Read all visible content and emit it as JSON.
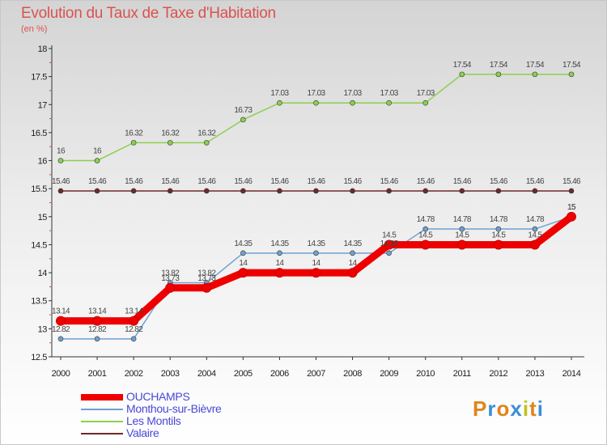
{
  "title": "Evolution du Taux de Taxe d'Habitation",
  "unit": "(en %)",
  "logo": {
    "text": "Proxiti",
    "letter_colors": [
      "#e0841c",
      "#3a8fd8",
      "#e0841c",
      "#3a8fd8",
      "#c0c020",
      "#e0841c",
      "#3a8fd8"
    ]
  },
  "chart_data": {
    "type": "line",
    "title": "Evolution du Taux de Taxe d'Habitation",
    "ylabel": "(en %)",
    "xlabel": "",
    "ylim": [
      12.5,
      18
    ],
    "yticks": [
      "12.5",
      "13",
      "13.5",
      "14",
      "14.5",
      "15",
      "15.5",
      "16",
      "16.5",
      "17",
      "17.5",
      "18"
    ],
    "categories": [
      "2000",
      "2001",
      "2002",
      "2003",
      "2004",
      "2005",
      "2006",
      "2007",
      "2008",
      "2009",
      "2010",
      "2011",
      "2012",
      "2013",
      "2014"
    ],
    "grid": false,
    "legend_position": "bottom-left",
    "series": [
      {
        "name": "OUCHAMPS",
        "color": "#ee0000",
        "values": [
          13.14,
          13.14,
          13.14,
          13.73,
          13.73,
          14,
          14,
          14,
          14,
          14.5,
          14.5,
          14.5,
          14.5,
          14.5,
          15
        ],
        "labels": [
          "13.14",
          "13.14",
          "13.14",
          "13.73",
          "13.73",
          "14",
          "14",
          "14",
          "14",
          "14.5",
          "14.5",
          "14.5",
          "14.5",
          "14.5",
          "15"
        ]
      },
      {
        "name": "Monthou-sur-Bièvre",
        "color": "#6fa0d0",
        "values": [
          12.82,
          12.82,
          12.82,
          13.82,
          13.82,
          14.35,
          14.35,
          14.35,
          14.35,
          14.35,
          14.78,
          14.78,
          14.78,
          14.78,
          15
        ],
        "labels": [
          "12.82",
          "12.82",
          "12.82",
          "13.82",
          "13.82",
          "14.35",
          "14.35",
          "14.35",
          "14.35",
          "14.35",
          "14.78",
          "14.78",
          "14.78",
          "14.78",
          "15"
        ]
      },
      {
        "name": "Les Montils",
        "color": "#8cd050",
        "values": [
          16,
          16,
          16.32,
          16.32,
          16.32,
          16.73,
          17.03,
          17.03,
          17.03,
          17.03,
          17.03,
          17.54,
          17.54,
          17.54,
          17.54
        ],
        "labels": [
          "16",
          "16",
          "16.32",
          "16.32",
          "16.32",
          "16.73",
          "17.03",
          "17.03",
          "17.03",
          "17.03",
          "17.03",
          "17.54",
          "17.54",
          "17.54",
          "17.54"
        ]
      },
      {
        "name": "Valaire",
        "color": "#6e2a2a",
        "values": [
          15.46,
          15.46,
          15.46,
          15.46,
          15.46,
          15.46,
          15.46,
          15.46,
          15.46,
          15.46,
          15.46,
          15.46,
          15.46,
          15.46,
          15.46
        ],
        "labels": [
          "15.46",
          "15.46",
          "15.46",
          "15.46",
          "15.46",
          "15.46",
          "15.46",
          "15.46",
          "15.46",
          "15.46",
          "15.46",
          "15.46",
          "15.46",
          "15.46",
          "15.46"
        ]
      }
    ]
  }
}
